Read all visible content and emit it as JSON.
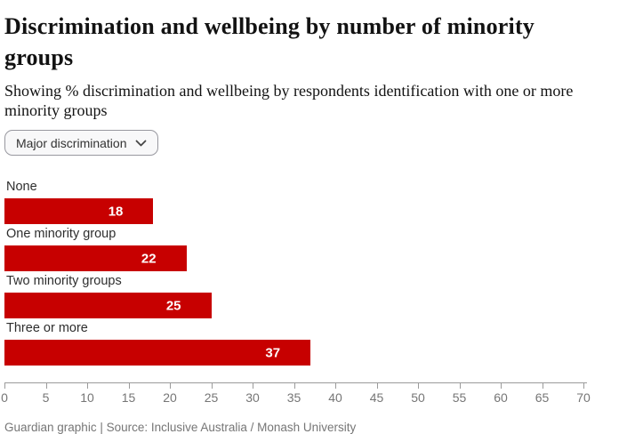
{
  "header": {
    "title": "Discrimination and wellbeing by number of minority groups",
    "subtitle": "Showing % discrimination and wellbeing by respondents identification with one or more minority groups"
  },
  "controls": {
    "metric_dropdown": {
      "selected": "Major discrimination",
      "options": [
        "Major discrimination"
      ],
      "chevron_icon": "chevron-down"
    }
  },
  "chart_data": {
    "type": "bar",
    "orientation": "horizontal",
    "title": "Discrimination and wellbeing by number of minority groups",
    "series_label": "Major discrimination",
    "categories": [
      "None",
      "One minority group",
      "Two minority groups",
      "Three or more"
    ],
    "values": [
      18,
      22,
      25,
      37
    ],
    "value_unit": "%",
    "xlim": [
      0,
      70
    ],
    "x_ticks": [
      0,
      5,
      10,
      15,
      20,
      25,
      30,
      35,
      40,
      45,
      50,
      55,
      60,
      65,
      70
    ],
    "grid": false,
    "bar_color": "#c70000",
    "value_label_color": "#ffffff",
    "axis_color": "#9b9b9b",
    "tick_label_color": "#767676"
  },
  "footer": {
    "credit": "Guardian graphic | Source: Inclusive Australia / Monash University"
  }
}
